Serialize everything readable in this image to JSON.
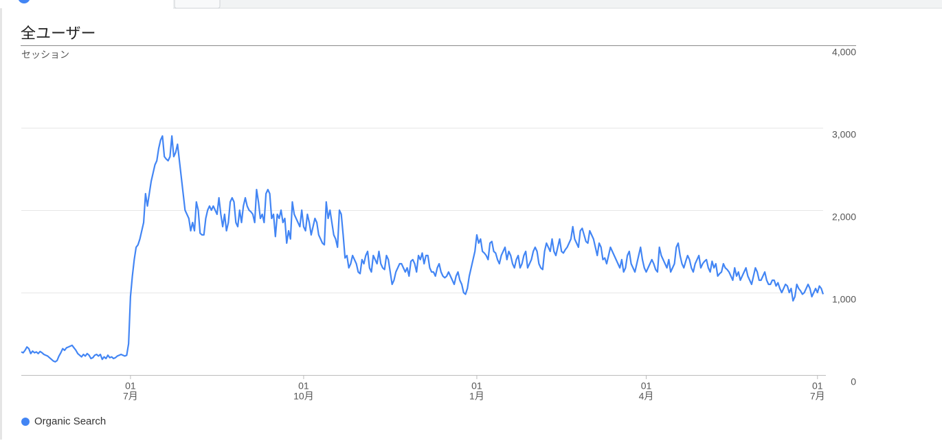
{
  "chart_data": {
    "type": "line",
    "title": "全ユーザー",
    "y_label": "セッション",
    "ylim": [
      0,
      4000
    ],
    "yticks": [
      0,
      {
        "value": 1000,
        "label": "1,000"
      },
      {
        "value": 2000,
        "label": "2,000"
      },
      {
        "value": 3000,
        "label": "3,000"
      },
      {
        "value": 4000,
        "label": "4,000"
      }
    ],
    "grid": true,
    "legend": "bottom-left",
    "categories": [
      null,
      null,
      null,
      null,
      null,
      null,
      null,
      null,
      null,
      null,
      null,
      null,
      null,
      null,
      null,
      null,
      null,
      null,
      null,
      null,
      null,
      null,
      null,
      null,
      null,
      null,
      null,
      null,
      null,
      null,
      null,
      null,
      null,
      null,
      null,
      null,
      null,
      null,
      null,
      null,
      null,
      null,
      null,
      null,
      null,
      null,
      null,
      null,
      null,
      null,
      null,
      null,
      null,
      null,
      null,
      null,
      null,
      null,
      [
        "01",
        "7月"
      ],
      null,
      null,
      null,
      null,
      null,
      null,
      null,
      null,
      null,
      null,
      null,
      null,
      null,
      null,
      null,
      null,
      null,
      null,
      null,
      null,
      null,
      null,
      null,
      null,
      null,
      null,
      null,
      null,
      null,
      null,
      null,
      null,
      null,
      null,
      null,
      null,
      null,
      null,
      null,
      null,
      null,
      null,
      null,
      null,
      null,
      null,
      null,
      null,
      null,
      null,
      null,
      null,
      null,
      null,
      null,
      null,
      null,
      null,
      null,
      null,
      null,
      null,
      null,
      null,
      null,
      null,
      null,
      null,
      null,
      null,
      null,
      null,
      null,
      null,
      null,
      null,
      null,
      null,
      null,
      null,
      null,
      null,
      null,
      null,
      null,
      null,
      null,
      null,
      null,
      null,
      null,
      [
        "01",
        "10月"
      ],
      null,
      null,
      null,
      null,
      null,
      null,
      null,
      null,
      null,
      null,
      null,
      null,
      null,
      null,
      null,
      null,
      null,
      null,
      null,
      null,
      null,
      null,
      null,
      null,
      null,
      null,
      null,
      null,
      null,
      null,
      null,
      null,
      null,
      null,
      null,
      null,
      null,
      null,
      null,
      null,
      null,
      null,
      null,
      null,
      null,
      null,
      null,
      null,
      null,
      null,
      null,
      null,
      null,
      null,
      null,
      null,
      null,
      null,
      null,
      null,
      null,
      null,
      null,
      null,
      null,
      null,
      null,
      null,
      null,
      null,
      null,
      null,
      null,
      null,
      null,
      null,
      null,
      null,
      null,
      null,
      null,
      null,
      null,
      null,
      null,
      null,
      null,
      null,
      null,
      null,
      null,
      [
        "01",
        "1月"
      ],
      null,
      null,
      null,
      null,
      null,
      null,
      null,
      null,
      null,
      null,
      null,
      null,
      null,
      null,
      null,
      null,
      null,
      null,
      null,
      null,
      null,
      null,
      null,
      null,
      null,
      null,
      null,
      null,
      null,
      null,
      null,
      null,
      null,
      null,
      null,
      null,
      null,
      null,
      null,
      null,
      null,
      null,
      null,
      null,
      null,
      null,
      null,
      null,
      null,
      null,
      null,
      null,
      null,
      null,
      null,
      null,
      null,
      null,
      null,
      null,
      null,
      null,
      null,
      null,
      null,
      null,
      null,
      null,
      null,
      null,
      null,
      null,
      null,
      null,
      null,
      null,
      null,
      null,
      null,
      null,
      null,
      null,
      null,
      null,
      null,
      null,
      null,
      null,
      null,
      [
        "01",
        "4月"
      ],
      null,
      null,
      null,
      null,
      null,
      null,
      null,
      null,
      null,
      null,
      null,
      null,
      null,
      null,
      null,
      null,
      null,
      null,
      null,
      null,
      null,
      null,
      null,
      null,
      null,
      null,
      null,
      null,
      null,
      null,
      null,
      null,
      null,
      null,
      null,
      null,
      null,
      null,
      null,
      null,
      null,
      null,
      null,
      null,
      null,
      null,
      null,
      null,
      null,
      null,
      null,
      null,
      null,
      null,
      null,
      null,
      null,
      null,
      null,
      null,
      null,
      null,
      null,
      null,
      null,
      null,
      null,
      null,
      null,
      null,
      null,
      null,
      null,
      null,
      null,
      null,
      null,
      null,
      null,
      null,
      null,
      null,
      null,
      null,
      null,
      null,
      null,
      null,
      null,
      null,
      [
        "01",
        "7月"
      ],
      null,
      null,
      null
    ],
    "series": [
      {
        "name": "Organic Search",
        "color": "#4285f4",
        "values": [
          280,
          270,
          300,
          340,
          320,
          260,
          290,
          270,
          280,
          260,
          285,
          270,
          250,
          240,
          230,
          210,
          190,
          170,
          160,
          175,
          230,
          270,
          320,
          300,
          330,
          340,
          350,
          360,
          330,
          300,
          260,
          240,
          220,
          250,
          230,
          260,
          240,
          200,
          210,
          240,
          250,
          230,
          250,
          190,
          220,
          200,
          240,
          210,
          220,
          200,
          210,
          230,
          240,
          250,
          240,
          230,
          240,
          380,
          950,
          1200,
          1400,
          1550,
          1580,
          1650,
          1750,
          1850,
          2200,
          2050,
          2200,
          2350,
          2450,
          2550,
          2600,
          2750,
          2850,
          2900,
          2650,
          2620,
          2600,
          2650,
          2900,
          2650,
          2700,
          2800,
          2600,
          2400,
          2200,
          2000,
          1950,
          1900,
          1750,
          1850,
          1750,
          2100,
          2000,
          1720,
          1700,
          1700,
          1900,
          2000,
          2050,
          2000,
          2050,
          2000,
          1950,
          2150,
          1950,
          1800,
          1950,
          1750,
          1850,
          2100,
          2150,
          2100,
          1850,
          1800,
          2000,
          1850,
          2050,
          2150,
          2050,
          2000,
          1980,
          1950,
          1850,
          2250,
          2100,
          1900,
          1950,
          1850,
          2200,
          2250,
          2200,
          1900,
          1950,
          1680,
          1950,
          1900,
          2000,
          1850,
          1900,
          1600,
          1750,
          1650,
          2100,
          1950,
          1900,
          1850,
          1800,
          2000,
          1800,
          1750,
          1950,
          1850,
          1700,
          1800,
          1900,
          1850,
          1700,
          1650,
          1600,
          1580,
          2100,
          1900,
          2000,
          1850,
          1700,
          1650,
          1550,
          2000,
          1950,
          1700,
          1420,
          1450,
          1300,
          1350,
          1450,
          1400,
          1350,
          1250,
          1230,
          1400,
          1350,
          1450,
          1500,
          1300,
          1250,
          1450,
          1400,
          1350,
          1500,
          1350,
          1300,
          1280,
          1450,
          1400,
          1250,
          1100,
          1150,
          1250,
          1300,
          1350,
          1350,
          1300,
          1250,
          1300,
          1200,
          1380,
          1400,
          1350,
          1250,
          1450,
          1400,
          1480,
          1350,
          1450,
          1450,
          1300,
          1250,
          1250,
          1200,
          1300,
          1350,
          1250,
          1200,
          1180,
          1200,
          1250,
          1200,
          1150,
          1100,
          1200,
          1250,
          1150,
          1100,
          1000,
          980,
          1050,
          1200,
          1300,
          1400,
          1500,
          1700,
          1600,
          1650,
          1500,
          1480,
          1450,
          1400,
          1600,
          1620,
          1500,
          1480,
          1400,
          1350,
          1450,
          1500,
          1550,
          1400,
          1500,
          1450,
          1350,
          1300,
          1400,
          1450,
          1300,
          1350,
          1450,
          1500,
          1300,
          1350,
          1400,
          1500,
          1550,
          1500,
          1350,
          1300,
          1280,
          1500,
          1600,
          1550,
          1500,
          1650,
          1500,
          1450,
          1550,
          1650,
          1500,
          1480,
          1520,
          1550,
          1600,
          1650,
          1800,
          1650,
          1600,
          1550,
          1750,
          1780,
          1700,
          1620,
          1600,
          1750,
          1700,
          1650,
          1550,
          1450,
          1600,
          1550,
          1400,
          1420,
          1350,
          1450,
          1550,
          1500,
          1450,
          1400,
          1350,
          1300,
          1400,
          1250,
          1300,
          1450,
          1500,
          1350,
          1300,
          1250,
          1350,
          1450,
          1550,
          1400,
          1300,
          1250,
          1300,
          1350,
          1400,
          1350,
          1280,
          1250,
          1550,
          1450,
          1400,
          1350,
          1300,
          1400,
          1250,
          1300,
          1350,
          1550,
          1600,
          1450,
          1350,
          1300,
          1380,
          1450,
          1400,
          1300,
          1250,
          1350,
          1400,
          1450,
          1300,
          1350,
          1380,
          1400,
          1300,
          1250,
          1380,
          1300,
          1350,
          1200,
          1230,
          1250,
          1350,
          1300,
          1280,
          1250,
          1200,
          1150,
          1300,
          1200,
          1250,
          1150,
          1200,
          1250,
          1300,
          1200,
          1150,
          1100,
          1200,
          1300,
          1250,
          1150,
          1150,
          1200,
          1250,
          1150,
          1100,
          1100,
          1150,
          1150,
          1080,
          1120,
          1050,
          1000,
          1050,
          1100,
          1080,
          1000,
          1050,
          900,
          950,
          1100,
          1050,
          1020,
          980,
          1000,
          1050,
          1100,
          1050,
          950,
          1000,
          1050,
          1000,
          1080,
          1050,
          980
        ]
      }
    ]
  }
}
